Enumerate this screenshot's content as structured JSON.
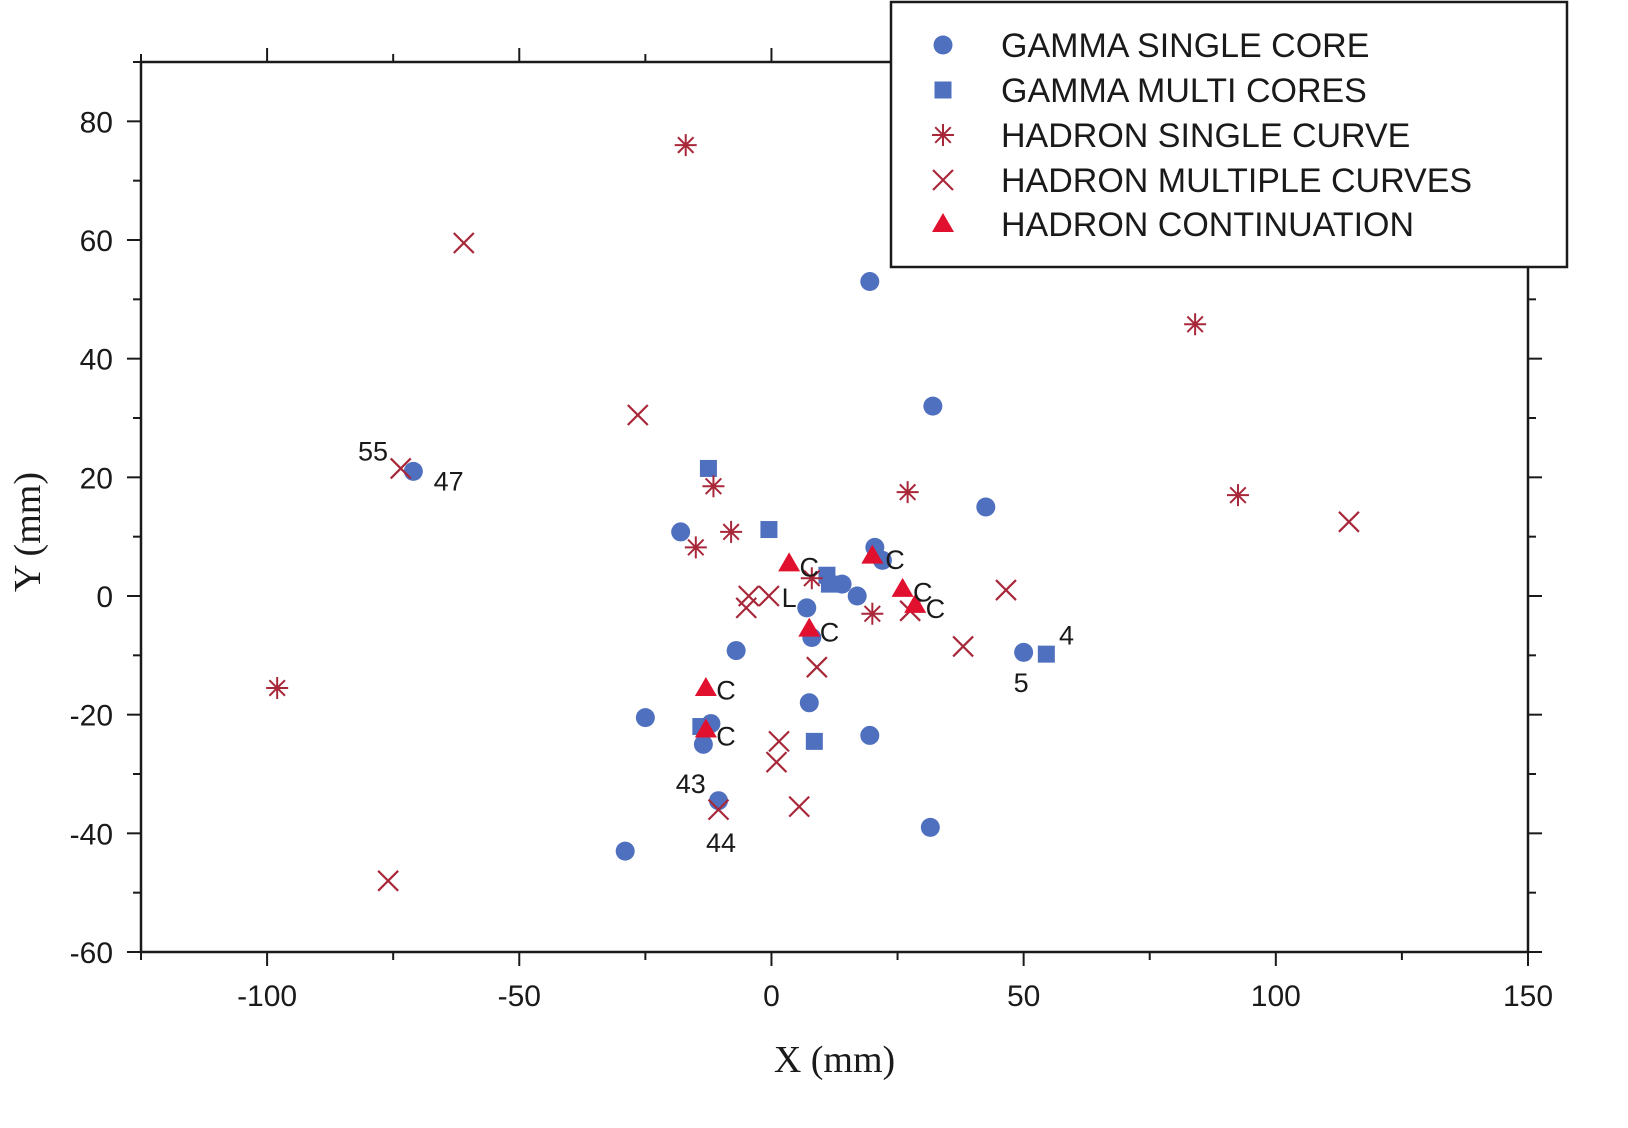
{
  "chart_data": {
    "type": "scatter",
    "xlabel": "X (mm)",
    "ylabel": "Y (mm)",
    "xlim": [
      -125,
      150
    ],
    "ylim": [
      -60,
      90
    ],
    "x_ticks": [
      -100,
      -50,
      0,
      50,
      100,
      150
    ],
    "y_ticks": [
      -60,
      -40,
      -20,
      0,
      20,
      40,
      60,
      80
    ],
    "grid": false,
    "legend_position": "top-right",
    "colors": {
      "gamma": "#4f6fbf",
      "hadron": "#a8283a",
      "continuation": "#e0102e",
      "axis": "#1a1a1a"
    },
    "series": [
      {
        "name": "GAMMA SINGLE CORE",
        "marker": "circle",
        "points": [
          [
            19.5,
            53
          ],
          [
            32,
            32
          ],
          [
            42.5,
            15
          ],
          [
            -71,
            21
          ],
          [
            -18,
            10.8
          ],
          [
            20.5,
            8.2
          ],
          [
            22,
            6
          ],
          [
            14,
            2
          ],
          [
            17,
            0
          ],
          [
            7,
            -2
          ],
          [
            8,
            -7
          ],
          [
            -7,
            -9.2
          ],
          [
            50,
            -9.5
          ],
          [
            7.5,
            -18
          ],
          [
            19.5,
            -23.5
          ],
          [
            -25,
            -20.5
          ],
          [
            -12,
            -21.5
          ],
          [
            -13.5,
            -25
          ],
          [
            -10.5,
            -34.5
          ],
          [
            -29,
            -43
          ],
          [
            31.5,
            -39
          ]
        ]
      },
      {
        "name": "GAMMA MULTI CORES",
        "marker": "square",
        "points": [
          [
            -12.5,
            21.5
          ],
          [
            -0.5,
            11.2
          ],
          [
            11,
            3.5
          ],
          [
            11.5,
            2
          ],
          [
            54.5,
            -9.8
          ],
          [
            -14,
            -22
          ],
          [
            8.5,
            -24.5
          ]
        ]
      },
      {
        "name": "HADRON SINGLE CURVE",
        "marker": "asterisk",
        "points": [
          [
            -17,
            76
          ],
          [
            84,
            45.8
          ],
          [
            27,
            17.5
          ],
          [
            -11.5,
            18.5
          ],
          [
            92.5,
            17
          ],
          [
            -8,
            10.8
          ],
          [
            -15,
            8.2
          ],
          [
            8,
            3
          ],
          [
            20,
            -3
          ],
          [
            -98,
            -15.5
          ]
        ]
      },
      {
        "name": "HADRON MULTIPLE CURVES",
        "marker": "cross",
        "points": [
          [
            -61,
            59.5
          ],
          [
            -26.5,
            30.5
          ],
          [
            -73.5,
            21.5
          ],
          [
            114.5,
            12.5
          ],
          [
            46.5,
            1
          ],
          [
            -4.5,
            0
          ],
          [
            -0.5,
            0
          ],
          [
            -5,
            -2
          ],
          [
            27.5,
            -2.5
          ],
          [
            38,
            -8.5
          ],
          [
            9,
            -12
          ],
          [
            1.5,
            -24.5
          ],
          [
            1,
            -28
          ],
          [
            5.5,
            -35.5
          ],
          [
            -10.5,
            -36
          ],
          [
            -76,
            -48
          ]
        ]
      },
      {
        "name": "HADRON CONTINUATION",
        "marker": "triangle",
        "points": [
          [
            3.5,
            5.5
          ],
          [
            20,
            6.8
          ],
          [
            26,
            1.2
          ],
          [
            28.5,
            -1.5
          ],
          [
            7.5,
            -5.5
          ],
          [
            -13,
            -15.5
          ],
          [
            -13,
            -22.5
          ]
        ]
      }
    ],
    "annotations": [
      {
        "text": "55",
        "x": -79,
        "y": 24.5
      },
      {
        "text": "47",
        "x": -64,
        "y": 19.5
      },
      {
        "text": "C",
        "x": 7.5,
        "y": 5
      },
      {
        "text": "C",
        "x": 24.5,
        "y": 6.2
      },
      {
        "text": "C",
        "x": 30,
        "y": 0.8
      },
      {
        "text": "C",
        "x": 32.5,
        "y": -2
      },
      {
        "text": "L",
        "x": 3.5,
        "y": -0.2
      },
      {
        "text": "C",
        "x": 11.5,
        "y": -6
      },
      {
        "text": "4",
        "x": 58.5,
        "y": -6.5
      },
      {
        "text": "5",
        "x": 49.5,
        "y": -14.5
      },
      {
        "text": "C",
        "x": -9,
        "y": -15.8
      },
      {
        "text": "C",
        "x": -9,
        "y": -23.5
      },
      {
        "text": "43",
        "x": -16,
        "y": -31.5
      },
      {
        "text": "44",
        "x": -10,
        "y": -41.5
      }
    ]
  }
}
